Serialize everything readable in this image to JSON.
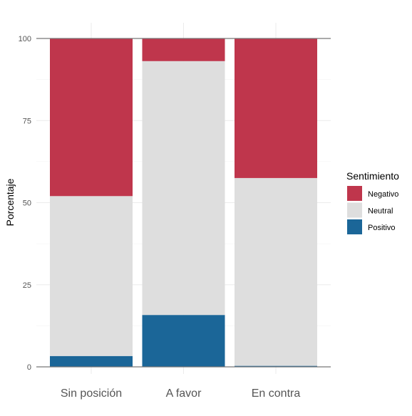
{
  "chart_data": {
    "type": "bar",
    "stacked": true,
    "title": "",
    "xlabel": "",
    "ylabel": "Porcentaje",
    "ylim": [
      0,
      100
    ],
    "yticks": [
      0,
      25,
      50,
      75,
      100
    ],
    "grid": true,
    "legend_position": "right",
    "legend_title": "Sentimiento",
    "categories": [
      "Sin posición",
      "A favor",
      "En contra"
    ],
    "series": [
      {
        "name": "Positivo",
        "color": "#1b6698",
        "values": [
          3.3,
          15.8,
          0.3
        ]
      },
      {
        "name": "Neutral",
        "color": "#dedede",
        "values": [
          48.7,
          77.3,
          57.2
        ]
      },
      {
        "name": "Negativo",
        "color": "#bf364c",
        "values": [
          48.0,
          6.9,
          42.5
        ]
      }
    ],
    "legend_order": [
      "Negativo",
      "Neutral",
      "Positivo"
    ]
  }
}
